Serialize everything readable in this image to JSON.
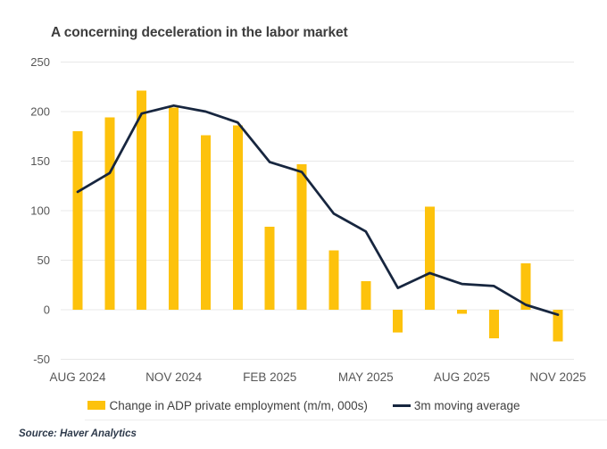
{
  "title": "A concerning deceleration in the labor market",
  "source_note": "Source: Haver Analytics",
  "legend": {
    "bars_label": "Change in ADP private employment (m/m, 000s)",
    "line_label": "3m moving average"
  },
  "colors": {
    "bar": "#FDC20C",
    "line": "#17263F",
    "grid": "#E8E8E8",
    "title_text": "#3D3D3D",
    "tick_text": "#575757",
    "legend_text": "#3F3F3F",
    "source_text": "#2E3A4B"
  },
  "chart_data": {
    "type": "bar",
    "title": "A concerning deceleration in the labor market",
    "categories": [
      "Aug 2024",
      "Sep 2024",
      "Oct 2024",
      "Nov 2024",
      "Dec 2024",
      "Jan 2025",
      "Feb 2025",
      "Mar 2025",
      "Apr 2025",
      "May 2025",
      "Jun 2025",
      "Jul 2025",
      "Aug 2025",
      "Sep 2025",
      "Oct 2025",
      "Nov 2025"
    ],
    "series": [
      {
        "name": "Change in ADP private employment (m/m, 000s)",
        "type": "bar",
        "values": [
          180,
          194,
          221,
          204,
          176,
          186,
          84,
          147,
          60,
          29,
          -23,
          104,
          -4,
          -29,
          47,
          -32
        ]
      },
      {
        "name": "3m moving average",
        "type": "line",
        "values": [
          119,
          138,
          198,
          206,
          200,
          189,
          149,
          139,
          97,
          79,
          22,
          37,
          26,
          24,
          5,
          -5
        ]
      }
    ],
    "x_tick_labels": [
      "AUG 2024",
      "NOV 2024",
      "FEB 2025",
      "MAY 2025",
      "AUG 2025",
      "NOV 2025"
    ],
    "x_tick_indices": [
      0,
      3,
      6,
      9,
      12,
      15
    ],
    "y_ticks": [
      250,
      200,
      150,
      100,
      50,
      0,
      -50
    ],
    "ylim": [
      -50,
      250
    ],
    "grid": "horizontal",
    "legend_position": "bottom"
  }
}
